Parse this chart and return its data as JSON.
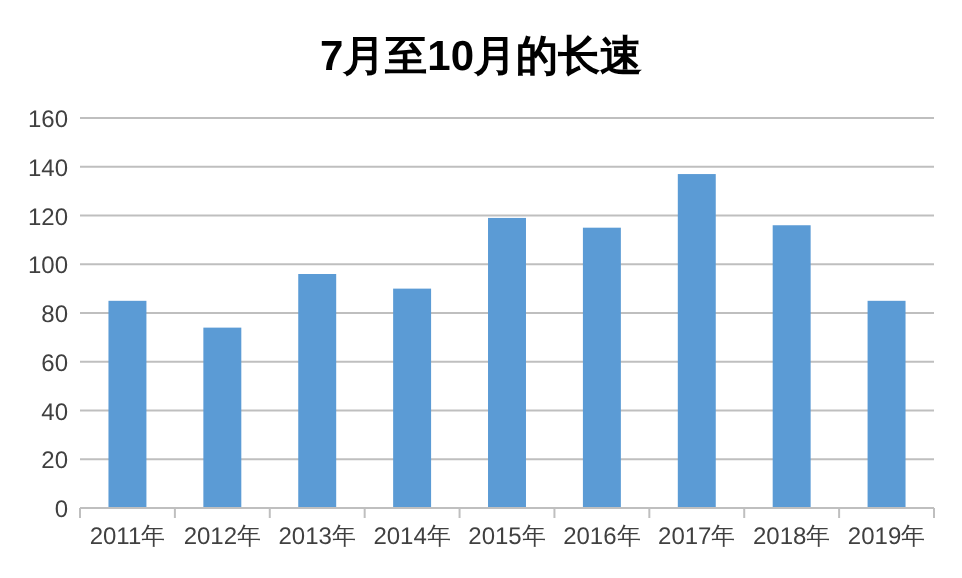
{
  "chart_data": {
    "type": "bar",
    "title": "7月至10月的长速",
    "categories": [
      "2011年",
      "2012年",
      "2013年",
      "2014年",
      "2015年",
      "2016年",
      "2017年",
      "2018年",
      "2019年"
    ],
    "values": [
      85,
      74,
      96,
      90,
      119,
      115,
      137,
      116,
      85
    ],
    "color": "#5b9bd5",
    "ylim": [
      0,
      160
    ],
    "yticks": [
      0,
      20,
      40,
      60,
      80,
      100,
      120,
      140,
      160
    ],
    "grid": "y"
  }
}
